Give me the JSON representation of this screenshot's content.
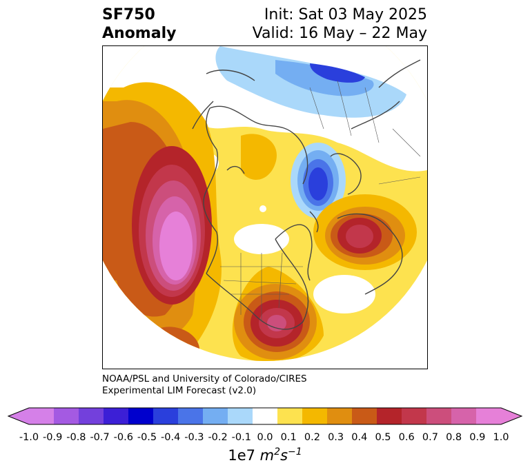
{
  "header": {
    "left_line1": "SF750",
    "left_line2": "Anomaly",
    "right_line1": "Init: Sat 03 May 2025",
    "right_line2": "Valid: 16 May – 22 May"
  },
  "credit": {
    "line1": "NOAA/PSL and University of Colorado/CIRES",
    "line2": "Experimental LIM Forecast (v2.0)"
  },
  "colorbar": {
    "tick_labels": [
      "-1.0",
      "-0.9",
      "-0.8",
      "-0.7",
      "-0.6",
      "-0.5",
      "-0.4",
      "-0.3",
      "-0.2",
      "-0.1",
      "0.0",
      "0.1",
      "0.2",
      "0.3",
      "0.4",
      "0.5",
      "0.6",
      "0.7",
      "0.8",
      "0.9",
      "1.0"
    ],
    "colors": [
      "#d580e8",
      "#a45ae2",
      "#7340dc",
      "#3c1fd6",
      "#0000cd",
      "#2a3fdc",
      "#4a74e8",
      "#74aef2",
      "#aad8fa",
      "#ffffff",
      "#fde24f",
      "#f4b800",
      "#e08e10",
      "#c95a17",
      "#b4242a",
      "#c2374b",
      "#cc4e7c",
      "#d663aa",
      "#e680d8"
    ],
    "units_base": "1e7",
    "units_m": "m",
    "units_m_exp": "2",
    "units_s": "s",
    "units_s_exp": "−1"
  },
  "map": {
    "projection": "north-polar stereographic",
    "field": "750 hPa streamfunction anomaly",
    "features": [
      {
        "name": "Pacific positive anomaly",
        "value": 0.9
      },
      {
        "name": "Southeast US positive anomaly",
        "value": 0.8
      },
      {
        "name": "North Atlantic negative anomaly",
        "value": -0.6
      },
      {
        "name": "Eurasian negative anomaly",
        "value": -0.5
      },
      {
        "name": "Eastern Atlantic positive anomaly",
        "value": 0.7
      }
    ]
  }
}
